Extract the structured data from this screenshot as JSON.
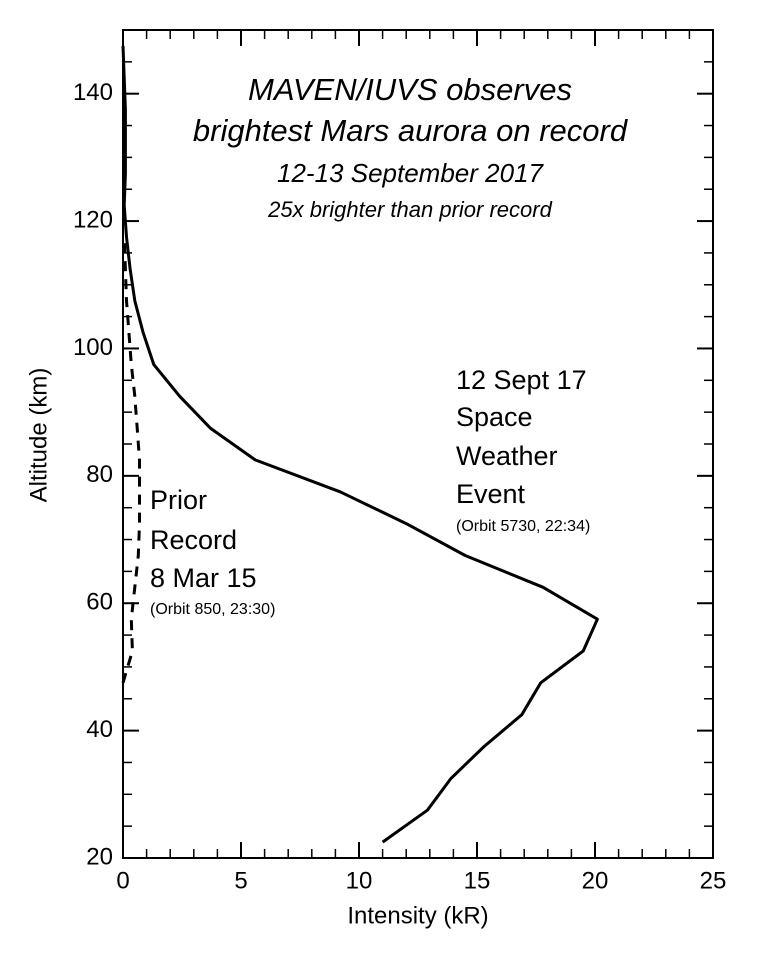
{
  "chart_data": {
    "type": "line",
    "title": [
      "MAVEN/IUVS observes",
      "brightest Mars aurora on record",
      "12-13 September 2017",
      "25x brighter than prior record"
    ],
    "xlabel": "Intensity (kR)",
    "ylabel": "Altitude (km)",
    "xlim": [
      0,
      25
    ],
    "ylim": [
      20,
      150
    ],
    "xticks": [
      0,
      5,
      10,
      15,
      20,
      25
    ],
    "yticks": [
      20,
      40,
      60,
      80,
      100,
      120,
      140
    ],
    "series": [
      {
        "color": "#000000",
        "dash": "solid",
        "x": [
          11.0,
          12.9,
          13.9,
          15.3,
          16.9,
          17.7,
          19.5,
          20.1,
          17.8,
          14.5,
          12.0,
          9.2,
          5.6,
          3.7,
          2.4,
          1.3,
          0.85,
          0.5,
          0.3,
          0.15,
          0.05,
          0.1,
          0.1,
          0.1,
          0.05,
          0
        ],
        "values": [
          22.5,
          27.5,
          32.5,
          37.5,
          42.5,
          47.5,
          52.5,
          57.5,
          62.5,
          67.5,
          72.5,
          77.5,
          82.5,
          87.5,
          92.5,
          97.5,
          102.5,
          107.5,
          112.5,
          117.5,
          122.5,
          127.5,
          132.5,
          137.5,
          142.5,
          147.5
        ]
      },
      {
        "color": "#000000",
        "dash": "dashed",
        "x": [
          0.0,
          0.4,
          0.35,
          0.5,
          0.65,
          0.7,
          0.7,
          0.7,
          0.6,
          0.5,
          0.35,
          0.25,
          0.15,
          0.1,
          0.05
        ],
        "values": [
          47.5,
          52.5,
          57.5,
          62.5,
          67.5,
          72.5,
          77.5,
          82.5,
          87.5,
          92.5,
          97.5,
          102.5,
          107.5,
          112.5,
          117.5
        ]
      }
    ],
    "annotations": [
      {
        "lines": [
          "12 Sept 17",
          "Space",
          "Weather",
          "Event"
        ],
        "note": "(Orbit 5730, 22:34)"
      },
      {
        "lines": [
          "Prior",
          "Record",
          "8 Mar 15"
        ],
        "note": "(Orbit 850, 23:30)"
      }
    ]
  }
}
